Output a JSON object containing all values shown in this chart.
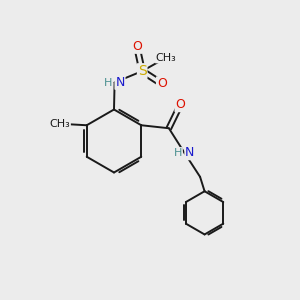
{
  "bg_color": "#ececec",
  "bond_color": "#1a1a1a",
  "bond_width": 1.4,
  "atom_colors": {
    "C": "#1a1a1a",
    "H": "#4a9090",
    "N": "#1a1acc",
    "O": "#dd1100",
    "S": "#ccaa00"
  },
  "font_size": 8.5
}
